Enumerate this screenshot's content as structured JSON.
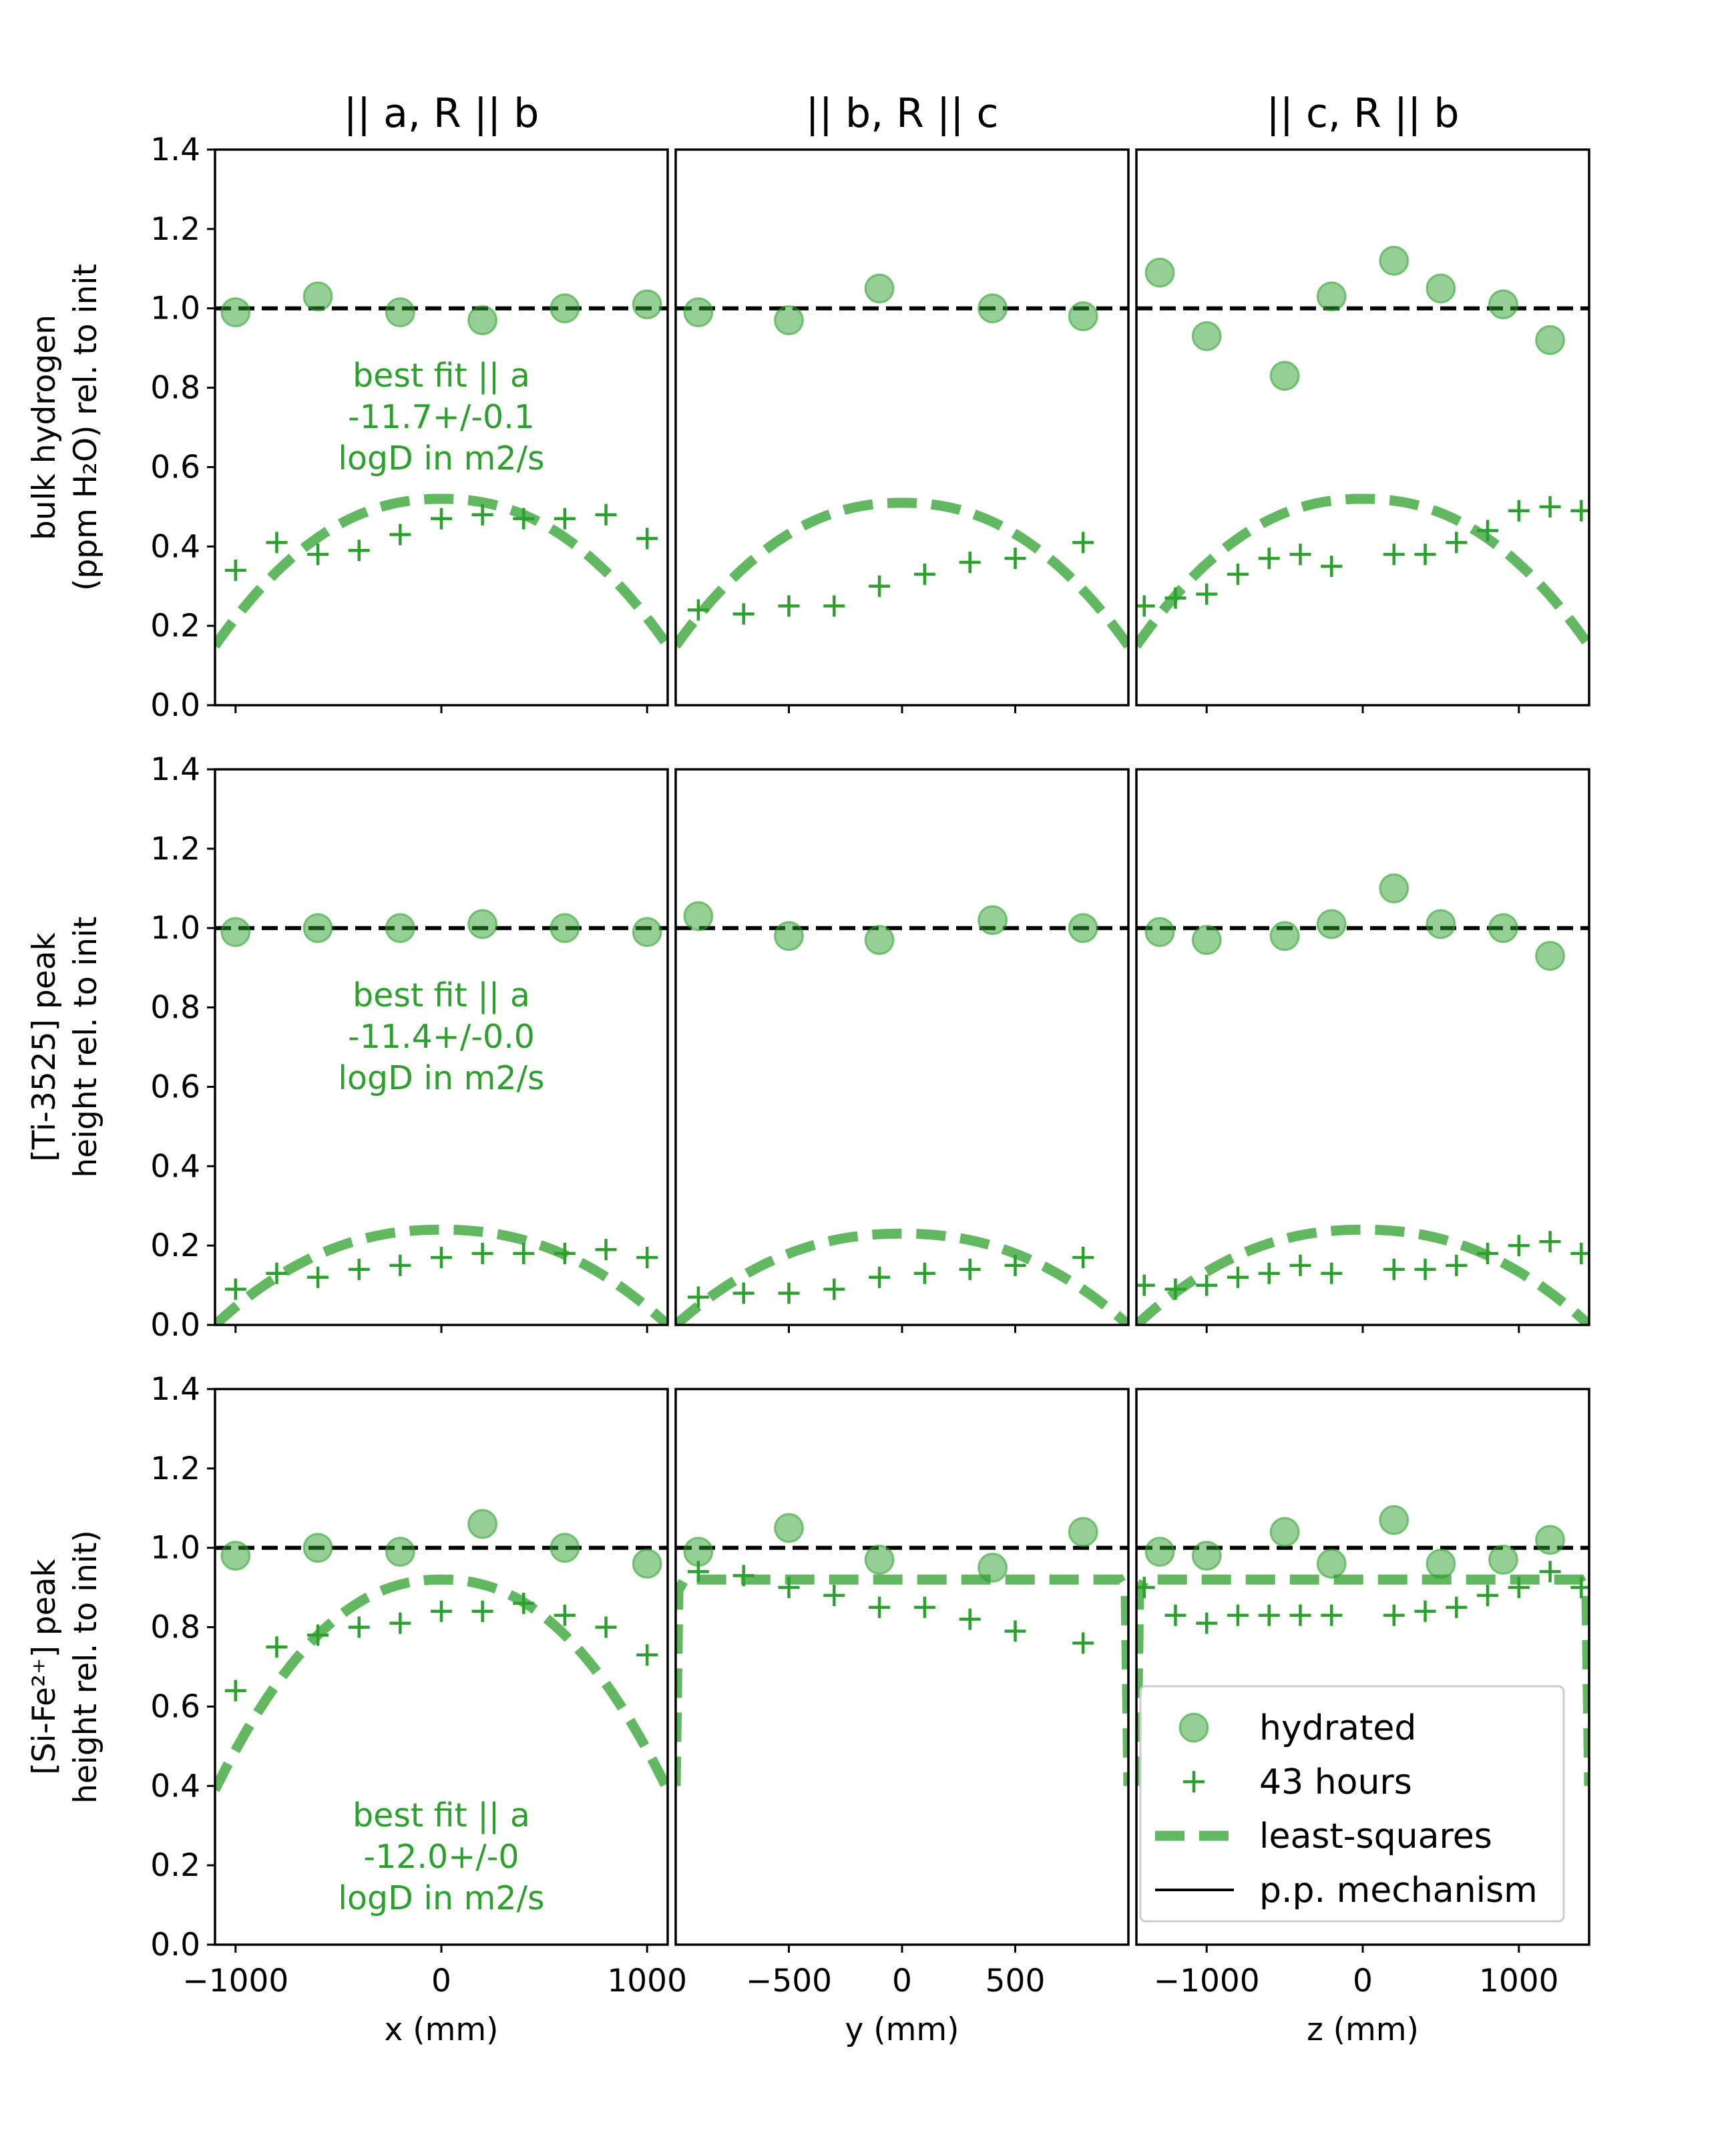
{
  "chart_data": {
    "type": "scatter",
    "layout": "3x3 grid",
    "colors": {
      "hydrated": "#2ca02c",
      "hours": "#2ca02c",
      "least_squares": "#2ca02c",
      "pp_mechanism": "#000000",
      "annotation": "#2ca02c"
    },
    "ylim": [
      0,
      1.4
    ],
    "yticks": [
      "0.0",
      "0.2",
      "0.4",
      "0.6",
      "0.8",
      "1.0",
      "1.2",
      "1.4"
    ],
    "ytick_values": [
      0,
      0.2,
      0.4,
      0.6,
      0.8,
      1.0,
      1.2,
      1.4
    ],
    "reference_line_y": 1.0,
    "columns": [
      {
        "title": "|| a, R || b",
        "xlabel": "x (mm)",
        "xlim": [
          -1100,
          1100
        ],
        "xticks": [
          "−1000",
          "0",
          "1000"
        ],
        "xtick_values": [
          -1000,
          0,
          1000
        ]
      },
      {
        "title": "|| b, R || c",
        "xlabel": "y (mm)",
        "xlim": [
          -1000,
          1000
        ],
        "xticks": [
          "−500",
          "0",
          "500"
        ],
        "xtick_values": [
          -500,
          0,
          500
        ]
      },
      {
        "title": "|| c, R || b",
        "xlabel": "z (mm)",
        "xlim": [
          -1450,
          1450
        ],
        "xticks": [
          "−1000",
          "0",
          "1000"
        ],
        "xtick_values": [
          -1000,
          0,
          1000
        ]
      }
    ],
    "rows": [
      {
        "ylabel_lines": [
          "bulk hydrogen",
          "(ppm H₂O) rel. to init"
        ],
        "annotation": [
          "best fit || a",
          "-11.7+/-0.1",
          "logD in m2/s"
        ]
      },
      {
        "ylabel_lines": [
          "[Ti-3525] peak",
          "height rel. to init"
        ],
        "annotation": [
          "best fit || a",
          "-11.4+/-0.0",
          "logD in m2/s"
        ]
      },
      {
        "ylabel_lines": [
          "[Si-Fe²⁺] peak",
          "height rel. to init)"
        ],
        "annotation": [
          "best fit || a",
          "-12.0+/-0",
          "logD in m2/s"
        ]
      }
    ],
    "panels": [
      {
        "row": 0,
        "col": 0,
        "hydrated": [
          [
            -1000,
            0.99
          ],
          [
            -600,
            1.03
          ],
          [
            -200,
            0.99
          ],
          [
            200,
            0.97
          ],
          [
            600,
            1.0
          ],
          [
            1000,
            1.01
          ]
        ],
        "hours": [
          [
            -1000,
            0.34
          ],
          [
            -800,
            0.41
          ],
          [
            -600,
            0.38
          ],
          [
            -400,
            0.39
          ],
          [
            -200,
            0.43
          ],
          [
            0,
            0.47
          ],
          [
            200,
            0.48
          ],
          [
            400,
            0.47
          ],
          [
            600,
            0.47
          ],
          [
            800,
            0.48
          ],
          [
            1000,
            0.42
          ]
        ],
        "fit": {
          "kind": "arc",
          "peak": 0.52,
          "edge": 0.15
        }
      },
      {
        "row": 0,
        "col": 1,
        "hydrated": [
          [
            -900,
            0.99
          ],
          [
            -500,
            0.97
          ],
          [
            -100,
            1.05
          ],
          [
            400,
            1.0
          ],
          [
            800,
            0.98
          ]
        ],
        "hours": [
          [
            -900,
            0.24
          ],
          [
            -700,
            0.23
          ],
          [
            -500,
            0.25
          ],
          [
            -300,
            0.25
          ],
          [
            -100,
            0.3
          ],
          [
            100,
            0.33
          ],
          [
            300,
            0.36
          ],
          [
            500,
            0.37
          ],
          [
            800,
            0.41
          ]
        ],
        "fit": {
          "kind": "arc",
          "peak": 0.51,
          "edge": 0.15
        }
      },
      {
        "row": 0,
        "col": 2,
        "hydrated": [
          [
            -1300,
            1.09
          ],
          [
            -1000,
            0.93
          ],
          [
            -500,
            0.83
          ],
          [
            -200,
            1.03
          ],
          [
            200,
            1.12
          ],
          [
            500,
            1.05
          ],
          [
            900,
            1.01
          ],
          [
            1200,
            0.92
          ]
        ],
        "hours": [
          [
            -1400,
            0.25
          ],
          [
            -1200,
            0.27
          ],
          [
            -1000,
            0.28
          ],
          [
            -800,
            0.33
          ],
          [
            -600,
            0.37
          ],
          [
            -400,
            0.38
          ],
          [
            -200,
            0.35
          ],
          [
            200,
            0.38
          ],
          [
            400,
            0.38
          ],
          [
            600,
            0.41
          ],
          [
            800,
            0.44
          ],
          [
            1000,
            0.49
          ],
          [
            1200,
            0.5
          ],
          [
            1400,
            0.49
          ]
        ],
        "fit": {
          "kind": "arc",
          "peak": 0.52,
          "edge": 0.15
        }
      },
      {
        "row": 1,
        "col": 0,
        "hydrated": [
          [
            -1000,
            0.99
          ],
          [
            -600,
            1.0
          ],
          [
            -200,
            1.0
          ],
          [
            200,
            1.01
          ],
          [
            600,
            1.0
          ],
          [
            1000,
            0.99
          ]
        ],
        "hours": [
          [
            -1000,
            0.09
          ],
          [
            -800,
            0.13
          ],
          [
            -600,
            0.12
          ],
          [
            -400,
            0.14
          ],
          [
            -200,
            0.15
          ],
          [
            0,
            0.17
          ],
          [
            200,
            0.18
          ],
          [
            400,
            0.18
          ],
          [
            600,
            0.18
          ],
          [
            800,
            0.19
          ],
          [
            1000,
            0.17
          ]
        ],
        "fit": {
          "kind": "arc",
          "peak": 0.24,
          "edge": 0.0
        }
      },
      {
        "row": 1,
        "col": 1,
        "hydrated": [
          [
            -900,
            1.03
          ],
          [
            -500,
            0.98
          ],
          [
            -100,
            0.97
          ],
          [
            400,
            1.02
          ],
          [
            800,
            1.0
          ]
        ],
        "hours": [
          [
            -900,
            0.07
          ],
          [
            -700,
            0.08
          ],
          [
            -500,
            0.08
          ],
          [
            -300,
            0.09
          ],
          [
            -100,
            0.12
          ],
          [
            100,
            0.13
          ],
          [
            300,
            0.14
          ],
          [
            500,
            0.15
          ],
          [
            800,
            0.17
          ]
        ],
        "fit": {
          "kind": "arc",
          "peak": 0.23,
          "edge": 0.0
        }
      },
      {
        "row": 1,
        "col": 2,
        "hydrated": [
          [
            -1300,
            0.99
          ],
          [
            -1000,
            0.97
          ],
          [
            -500,
            0.98
          ],
          [
            -200,
            1.01
          ],
          [
            200,
            1.1
          ],
          [
            500,
            1.01
          ],
          [
            900,
            1.0
          ],
          [
            1200,
            0.93
          ]
        ],
        "hours": [
          [
            -1400,
            0.1
          ],
          [
            -1200,
            0.09
          ],
          [
            -1000,
            0.1
          ],
          [
            -800,
            0.12
          ],
          [
            -600,
            0.13
          ],
          [
            -400,
            0.15
          ],
          [
            -200,
            0.13
          ],
          [
            200,
            0.14
          ],
          [
            400,
            0.14
          ],
          [
            600,
            0.15
          ],
          [
            800,
            0.18
          ],
          [
            1000,
            0.2
          ],
          [
            1200,
            0.21
          ],
          [
            1400,
            0.18
          ]
        ],
        "fit": {
          "kind": "arc",
          "peak": 0.24,
          "edge": 0.0
        }
      },
      {
        "row": 2,
        "col": 0,
        "hydrated": [
          [
            -1000,
            0.98
          ],
          [
            -600,
            1.0
          ],
          [
            -200,
            0.99
          ],
          [
            200,
            1.06
          ],
          [
            600,
            1.0
          ],
          [
            1000,
            0.96
          ]
        ],
        "hours": [
          [
            -1000,
            0.64
          ],
          [
            -800,
            0.75
          ],
          [
            -600,
            0.78
          ],
          [
            -400,
            0.8
          ],
          [
            -200,
            0.81
          ],
          [
            0,
            0.84
          ],
          [
            200,
            0.84
          ],
          [
            400,
            0.86
          ],
          [
            600,
            0.83
          ],
          [
            800,
            0.8
          ],
          [
            1000,
            0.73
          ]
        ],
        "fit": {
          "kind": "arc",
          "peak": 0.92,
          "edge": 0.39
        }
      },
      {
        "row": 2,
        "col": 1,
        "hydrated": [
          [
            -900,
            0.99
          ],
          [
            -500,
            1.05
          ],
          [
            -100,
            0.97
          ],
          [
            400,
            0.95
          ],
          [
            800,
            1.04
          ]
        ],
        "hours": [
          [
            -900,
            0.94
          ],
          [
            -700,
            0.93
          ],
          [
            -500,
            0.9
          ],
          [
            -300,
            0.88
          ],
          [
            -100,
            0.85
          ],
          [
            100,
            0.85
          ],
          [
            300,
            0.82
          ],
          [
            500,
            0.79
          ],
          [
            800,
            0.76
          ]
        ],
        "fit": {
          "kind": "plateau",
          "peak": 0.92,
          "edge": 0.4
        }
      },
      {
        "row": 2,
        "col": 2,
        "hydrated": [
          [
            -1300,
            0.99
          ],
          [
            -1000,
            0.98
          ],
          [
            -500,
            1.04
          ],
          [
            -200,
            0.96
          ],
          [
            200,
            1.07
          ],
          [
            500,
            0.96
          ],
          [
            900,
            0.97
          ],
          [
            1200,
            1.02
          ]
        ],
        "hours": [
          [
            -1400,
            0.9
          ],
          [
            -1200,
            0.83
          ],
          [
            -1000,
            0.81
          ],
          [
            -800,
            0.83
          ],
          [
            -600,
            0.83
          ],
          [
            -400,
            0.83
          ],
          [
            -200,
            0.83
          ],
          [
            200,
            0.83
          ],
          [
            400,
            0.84
          ],
          [
            600,
            0.85
          ],
          [
            800,
            0.88
          ],
          [
            1000,
            0.9
          ],
          [
            1200,
            0.94
          ],
          [
            1400,
            0.9
          ]
        ],
        "fit": {
          "kind": "plateau",
          "peak": 0.92,
          "edge": 0.4
        }
      }
    ],
    "legend": {
      "placement": "lower-right of bottom-right panel",
      "entries": [
        "hydrated",
        "43 hours",
        "least-squares",
        "p.p. mechanism"
      ]
    }
  }
}
